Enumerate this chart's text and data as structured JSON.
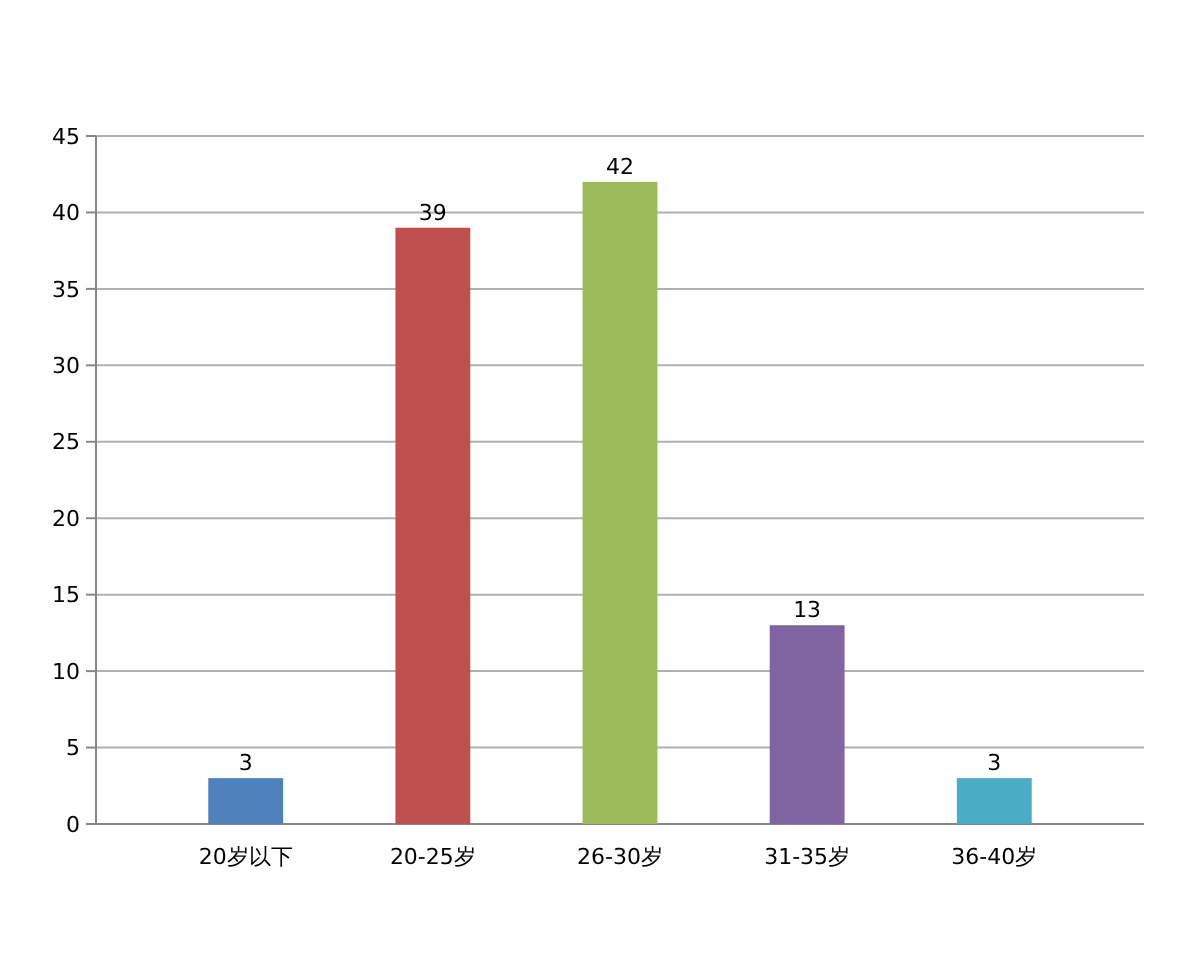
{
  "chart_data": {
    "type": "bar",
    "categories": [
      "20岁以下",
      "20-25岁",
      "26-30岁",
      "31-35岁",
      "36-40岁"
    ],
    "values": [
      3,
      39,
      42,
      13,
      3
    ],
    "colors": [
      "#4f81bd",
      "#c0504d",
      "#9bbb59",
      "#8064a2",
      "#4bacc6"
    ],
    "ylim": [
      0,
      45
    ],
    "yticks": [
      0,
      5,
      10,
      15,
      20,
      25,
      30,
      35,
      40,
      45
    ],
    "grid": "y",
    "data_labels": true
  }
}
